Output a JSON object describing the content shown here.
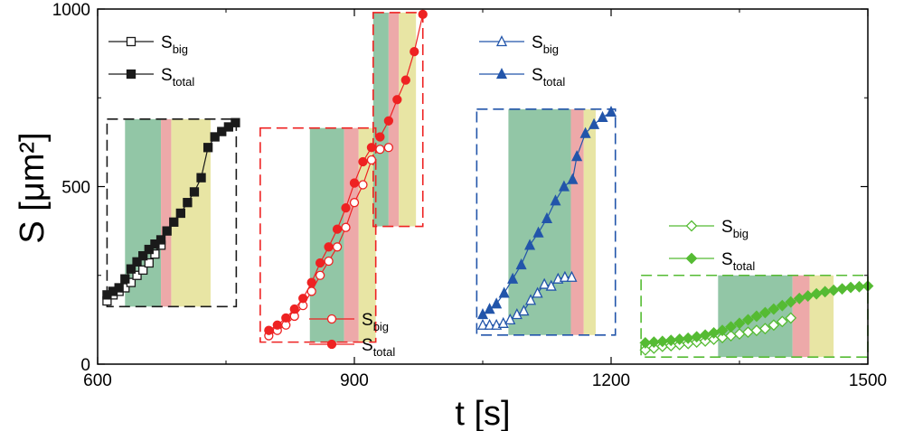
{
  "chart_data": {
    "type": "scatter",
    "xlabel": "t [s]",
    "ylabel": "S [μm²]",
    "xlim": [
      600,
      1500
    ],
    "ylim": [
      0,
      1000
    ],
    "xticks": [
      "600",
      "900",
      "1200",
      "1500"
    ],
    "yticks": [
      "0",
      "500",
      "1000"
    ],
    "grid": false,
    "shade_colors": {
      "green": "#86c09c",
      "pink": "#eba0a0",
      "yellow": "#e6e29a"
    },
    "groups": [
      {
        "color": "#1a1a1a",
        "marker": "square",
        "box": {
          "x": [
            611,
            762
          ],
          "y": [
            162,
            690
          ]
        },
        "shades": [
          {
            "color": "green",
            "x": [
              632,
              674
            ]
          },
          {
            "color": "pink",
            "x": [
              674,
              686
            ]
          },
          {
            "color": "yellow",
            "x": [
              686,
              732
            ]
          }
        ],
        "legend_position": "upper-left",
        "series": [
          {
            "name": "S",
            "sub": "big",
            "filled": false,
            "x": [
              611,
              618,
              625,
              632,
              639,
              646,
              653,
              660,
              667,
              674
            ],
            "y": [
              178,
              195,
              205,
              215,
              230,
              250,
              265,
              285,
              310,
              335
            ]
          },
          {
            "name": "S",
            "sub": "total",
            "filled": true,
            "x": [
              611,
              618,
              625,
              632,
              639,
              646,
              653,
              660,
              667,
              674,
              681,
              689,
              697,
              705,
              713,
              721,
              729,
              737,
              745,
              753,
              761
            ],
            "y": [
              195,
              205,
              215,
              240,
              268,
              288,
              305,
              323,
              338,
              350,
              375,
              400,
              425,
              455,
              485,
              525,
              610,
              640,
              655,
              668,
              680
            ]
          }
        ]
      },
      {
        "color": "#ee2222",
        "marker": "circle",
        "box": {
          "x": [
            790,
            925
          ],
          "y": [
            62,
            665
          ]
        },
        "shades": [
          {
            "color": "green",
            "x": [
              848,
              888
            ]
          },
          {
            "color": "pink",
            "x": [
              888,
              905
            ]
          },
          {
            "color": "yellow",
            "x": [
              905,
              925
            ]
          }
        ],
        "legend_position": "bottom-center",
        "series": [
          {
            "name": "S",
            "sub": "big",
            "filled": false,
            "x": [
              800,
              810,
              820,
              830,
              840,
              850,
              860,
              870,
              880,
              890,
              900,
              910,
              920
            ],
            "y": [
              80,
              95,
              110,
              135,
              165,
              205,
              250,
              290,
              330,
              385,
              455,
              505,
              575
            ]
          },
          {
            "name": "S",
            "sub": "total",
            "filled": true,
            "x": [
              800,
              810,
              820,
              830,
              840,
              850,
              860,
              870,
              880,
              890,
              900,
              910,
              920
            ],
            "y": [
              95,
              110,
              130,
              155,
              185,
              230,
              285,
              330,
              380,
              440,
              510,
              570,
              610
            ]
          }
        ]
      },
      {
        "color": "#ee2222",
        "marker": "circle",
        "box": {
          "x": [
            922,
            980
          ],
          "y": [
            388,
            990
          ]
        },
        "shades": [
          {
            "color": "green",
            "x": [
              922,
              940
            ]
          },
          {
            "color": "pink",
            "x": [
              940,
              952
            ]
          },
          {
            "color": "yellow",
            "x": [
              952,
              972
            ]
          }
        ],
        "legend_position": "",
        "series": [
          {
            "name": "",
            "sub": "",
            "filled": false,
            "x": [
              930,
              940
            ],
            "y": [
              605,
              610
            ]
          },
          {
            "name": "",
            "sub": "",
            "filled": true,
            "x": [
              930,
              940,
              950,
              960,
              970,
              980
            ],
            "y": [
              640,
              685,
              745,
              800,
              880,
              985
            ]
          }
        ]
      },
      {
        "color": "#2255aa",
        "marker": "triangle",
        "box": {
          "x": [
            1043,
            1205
          ],
          "y": [
            82,
            718
          ]
        },
        "shades": [
          {
            "color": "green",
            "x": [
              1080,
              1153
            ]
          },
          {
            "color": "pink",
            "x": [
              1153,
              1168
            ]
          },
          {
            "color": "yellow",
            "x": [
              1168,
              1182
            ]
          }
        ],
        "legend_position": "upper-center",
        "series": [
          {
            "name": "S",
            "sub": "big",
            "filled": false,
            "x": [
              1050,
              1058,
              1066,
              1074,
              1082,
              1090,
              1098,
              1106,
              1114,
              1122,
              1130,
              1138,
              1146,
              1154
            ],
            "y": [
              110,
              110,
              110,
              115,
              125,
              140,
              150,
              180,
              200,
              225,
              220,
              240,
              245,
              245
            ]
          },
          {
            "name": "S",
            "sub": "total",
            "filled": true,
            "x": [
              1050,
              1058,
              1066,
              1075,
              1085,
              1095,
              1105,
              1115,
              1125,
              1135,
              1145,
              1155,
              1160,
              1170,
              1180,
              1190,
              1200
            ],
            "y": [
              140,
              155,
              170,
              200,
              240,
              280,
              335,
              370,
              410,
              460,
              500,
              520,
              585,
              650,
              675,
              695,
              710
            ]
          }
        ]
      },
      {
        "color": "#55bb33",
        "marker": "diamond",
        "box": {
          "x": [
            1235,
            1500
          ],
          "y": [
            20,
            250
          ]
        },
        "shades": [
          {
            "color": "green",
            "x": [
              1325,
              1412
            ]
          },
          {
            "color": "pink",
            "x": [
              1412,
              1432
            ]
          },
          {
            "color": "yellow",
            "x": [
              1432,
              1460
            ]
          }
        ],
        "legend_position": "upper-center",
        "series": [
          {
            "name": "S",
            "sub": "big",
            "filled": false,
            "x": [
              1240,
              1250,
              1260,
              1270,
              1280,
              1290,
              1300,
              1310,
              1320,
              1330,
              1340,
              1350,
              1360,
              1370,
              1380,
              1390,
              1400,
              1410
            ],
            "y": [
              40,
              45,
              50,
              52,
              55,
              58,
              62,
              65,
              70,
              75,
              80,
              85,
              90,
              95,
              100,
              110,
              120,
              130
            ]
          },
          {
            "name": "S",
            "sub": "total",
            "filled": true,
            "x": [
              1240,
              1250,
              1260,
              1270,
              1280,
              1290,
              1300,
              1310,
              1320,
              1330,
              1340,
              1350,
              1360,
              1370,
              1380,
              1390,
              1400,
              1410,
              1420,
              1430,
              1440,
              1450,
              1460,
              1470,
              1480,
              1490,
              1500
            ],
            "y": [
              60,
              62,
              64,
              67,
              70,
              73,
              77,
              82,
              88,
              95,
              105,
              115,
              125,
              135,
              145,
              155,
              165,
              175,
              185,
              192,
              198,
              204,
              208,
              212,
              216,
              218,
              220
            ]
          }
        ]
      }
    ]
  }
}
